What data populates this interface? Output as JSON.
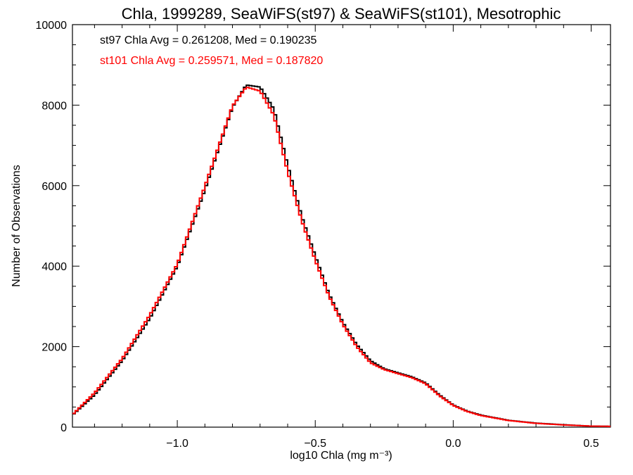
{
  "chart_data": {
    "type": "line",
    "title": "Chla, 1999289, SeaWiFS(st97) & SeaWiFS(st101), Mesotrophic",
    "xlabel": "log10 Chla (mg m⁻³)",
    "ylabel": "Number of Observations",
    "xlim": [
      -1.38,
      0.57
    ],
    "ylim": [
      0,
      10000
    ],
    "x_ticks": [
      -1.0,
      -0.5,
      0.0,
      0.5
    ],
    "x_tick_labels": [
      "−1.0",
      "−0.5",
      "0.0",
      "0.5"
    ],
    "y_ticks": [
      0,
      2000,
      4000,
      6000,
      8000,
      10000
    ],
    "y_tick_labels": [
      "0",
      "2000",
      "4000",
      "6000",
      "8000",
      "10000"
    ],
    "grid": false,
    "annotations": [
      {
        "text": "st97 Chla Avg = 0.261208, Med = 0.190235",
        "color": "#000000"
      },
      {
        "text": "st101 Chla Avg = 0.259571, Med = 0.187820",
        "color": "#ff0000"
      }
    ],
    "series": [
      {
        "color": "#000000",
        "style": "step",
        "x": [
          -1.38,
          -1.3,
          -1.2,
          -1.1,
          -1.0,
          -0.9,
          -0.8,
          -0.75,
          -0.7,
          -0.65,
          -0.6,
          -0.55,
          -0.5,
          -0.45,
          -0.4,
          -0.35,
          -0.3,
          -0.25,
          -0.2,
          -0.15,
          -0.1,
          -0.05,
          0.0,
          0.05,
          0.1,
          0.2,
          0.3,
          0.4,
          0.5,
          0.57
        ],
        "values": [
          300,
          800,
          1650,
          2700,
          4000,
          5900,
          7950,
          8500,
          8450,
          7900,
          6500,
          5250,
          4250,
          3300,
          2600,
          2050,
          1650,
          1450,
          1350,
          1250,
          1100,
          800,
          550,
          400,
          300,
          170,
          100,
          60,
          25,
          20
        ]
      },
      {
        "color": "#ff0000",
        "style": "step",
        "x": [
          -1.38,
          -1.3,
          -1.2,
          -1.1,
          -1.0,
          -0.9,
          -0.8,
          -0.75,
          -0.7,
          -0.65,
          -0.6,
          -0.55,
          -0.5,
          -0.45,
          -0.4,
          -0.35,
          -0.3,
          -0.25,
          -0.2,
          -0.15,
          -0.1,
          -0.05,
          0.0,
          0.05,
          0.1,
          0.2,
          0.3,
          0.4,
          0.5,
          0.57
        ],
        "values": [
          310,
          850,
          1700,
          2780,
          4050,
          5980,
          7980,
          8450,
          8350,
          7750,
          6350,
          5150,
          4150,
          3250,
          2550,
          2000,
          1600,
          1430,
          1330,
          1230,
          1080,
          780,
          540,
          390,
          290,
          165,
          95,
          55,
          25,
          20
        ]
      }
    ]
  }
}
